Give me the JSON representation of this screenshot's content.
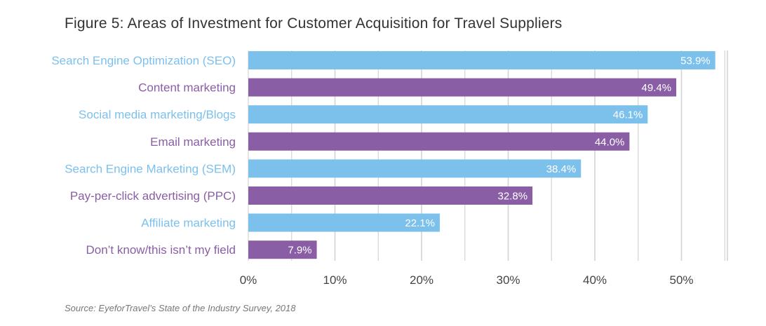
{
  "chart_data": {
    "type": "bar",
    "orientation": "horizontal",
    "title": "Figure 5: Areas of Investment for Customer Acquisition for Travel Suppliers",
    "source": "Source: EyeforTravel’s State of the Industry Survey, 2018",
    "categories": [
      "Search Engine Optimization  (SEO)",
      "Content marketing",
      "Social media marketing/Blogs",
      "Email marketing",
      "Search Engine Marketing (SEM)",
      "Pay-per-click advertising (PPC)",
      "Affiliate marketing",
      "Don’t know/this isn’t my field"
    ],
    "values": [
      53.9,
      49.4,
      46.1,
      44.0,
      38.4,
      32.8,
      22.1,
      7.9
    ],
    "value_labels": [
      "53.9%",
      "49.4%",
      "46.1%",
      "44.0%",
      "38.4%",
      "32.8%",
      "22.1%",
      "7.9%"
    ],
    "xlim": [
      0,
      55
    ],
    "x_ticks": [
      0,
      10,
      20,
      30,
      40,
      50
    ],
    "x_tick_labels": [
      "0%",
      "10%",
      "20%",
      "30%",
      "40%",
      "50%"
    ],
    "colors": [
      "#7cc0ec",
      "#8a5ea5"
    ],
    "grid": true
  }
}
